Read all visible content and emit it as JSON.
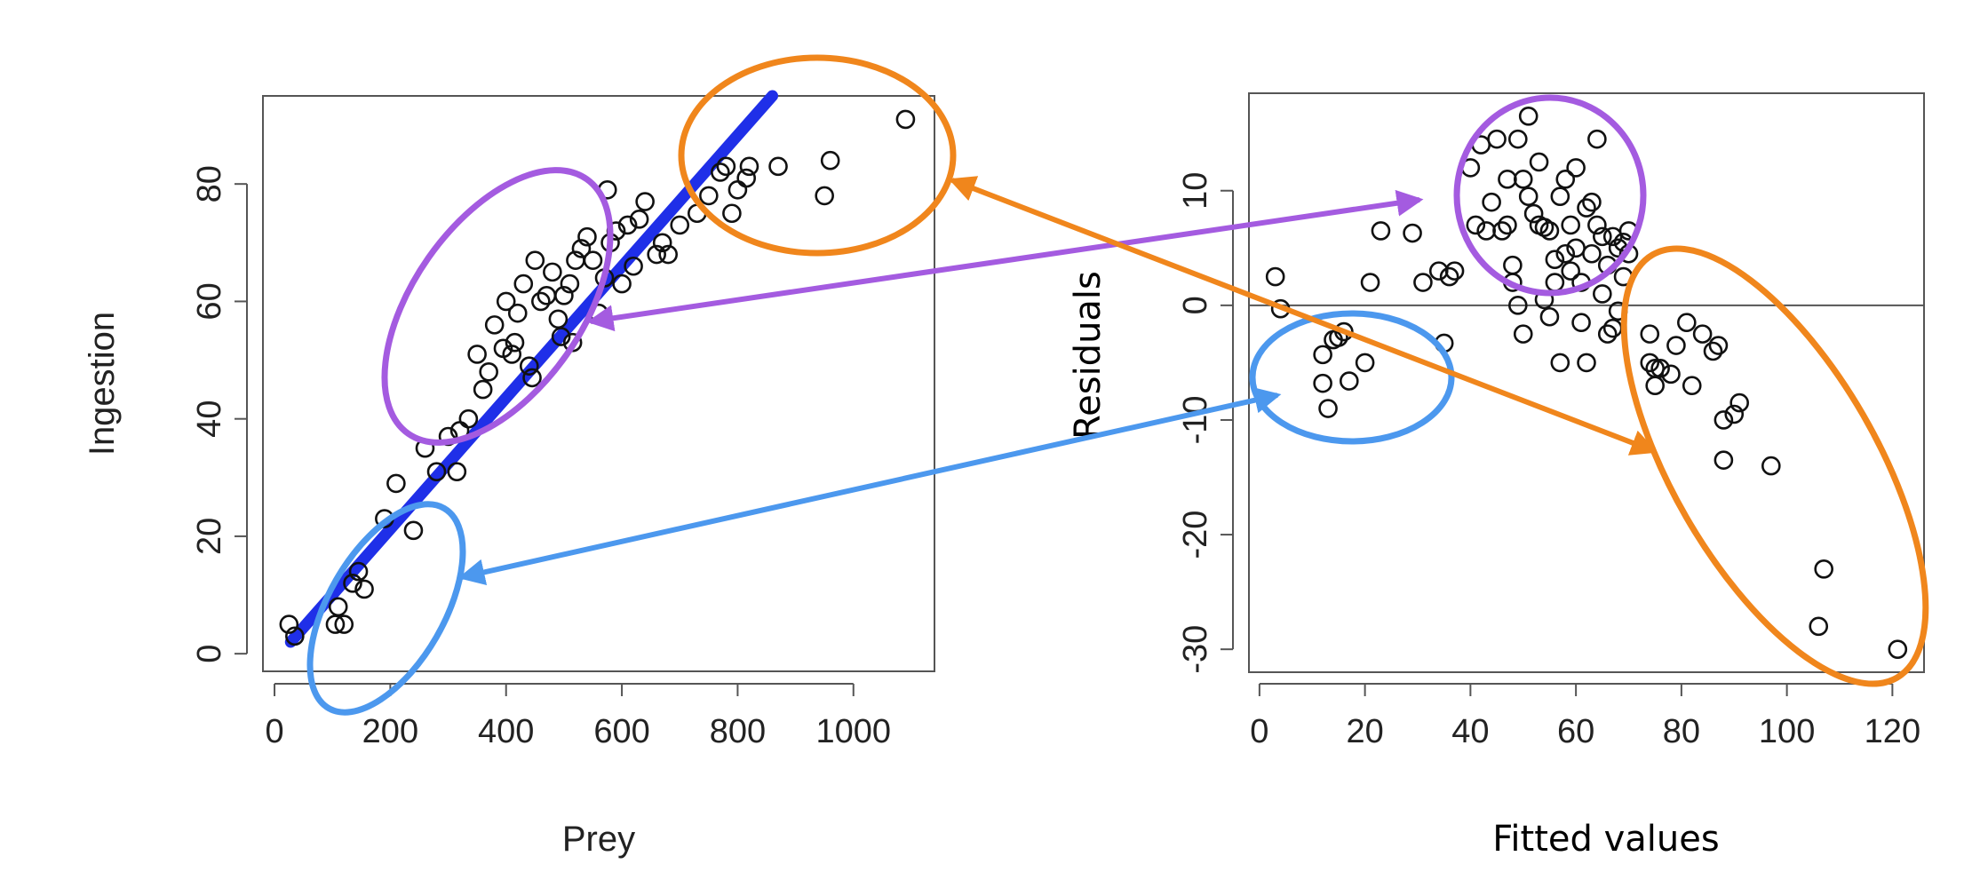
{
  "colors": {
    "regression_line": "#1f2fe8",
    "orange": "#f0861c",
    "purple": "#a45be0",
    "blue": "#4c98ee",
    "points": "#111111",
    "axes": "#555555"
  },
  "chart_data": [
    {
      "type": "scatter",
      "xlabel": "Prey",
      "ylabel": "Ingestion",
      "xlim": [
        -20,
        1140
      ],
      "ylim": [
        -3,
        95
      ],
      "x_ticks": [
        0,
        200,
        400,
        600,
        800,
        1000
      ],
      "x_tick_labels": [
        "0",
        "200",
        "400",
        "600",
        "800",
        "1000"
      ],
      "y_ticks": [
        0,
        20,
        40,
        60,
        80
      ],
      "y_tick_labels": [
        "0",
        "20",
        "40",
        "60",
        "80"
      ],
      "grid": false,
      "regression_line": {
        "x": [
          28,
          860
        ],
        "y": [
          2,
          95
        ],
        "color": "#1f2fe8"
      },
      "points": [
        [
          25,
          5
        ],
        [
          35,
          3
        ],
        [
          105,
          5
        ],
        [
          110,
          8
        ],
        [
          120,
          5
        ],
        [
          135,
          12
        ],
        [
          145,
          14
        ],
        [
          155,
          11
        ],
        [
          190,
          23
        ],
        [
          210,
          29
        ],
        [
          240,
          21
        ],
        [
          260,
          35
        ],
        [
          280,
          31
        ],
        [
          300,
          37
        ],
        [
          315,
          31
        ],
        [
          320,
          38
        ],
        [
          335,
          40
        ],
        [
          350,
          51
        ],
        [
          360,
          45
        ],
        [
          370,
          48
        ],
        [
          380,
          56
        ],
        [
          395,
          52
        ],
        [
          400,
          60
        ],
        [
          410,
          51
        ],
        [
          415,
          53
        ],
        [
          420,
          58
        ],
        [
          430,
          63
        ],
        [
          440,
          49
        ],
        [
          445,
          47
        ],
        [
          450,
          67
        ],
        [
          460,
          60
        ],
        [
          470,
          61
        ],
        [
          480,
          65
        ],
        [
          490,
          57
        ],
        [
          495,
          54
        ],
        [
          500,
          61
        ],
        [
          510,
          63
        ],
        [
          515,
          53
        ],
        [
          520,
          67
        ],
        [
          530,
          69
        ],
        [
          540,
          71
        ],
        [
          550,
          67
        ],
        [
          560,
          58
        ],
        [
          570,
          64
        ],
        [
          575,
          79
        ],
        [
          580,
          70
        ],
        [
          590,
          72
        ],
        [
          600,
          63
        ],
        [
          610,
          73
        ],
        [
          620,
          66
        ],
        [
          630,
          74
        ],
        [
          640,
          77
        ],
        [
          660,
          68
        ],
        [
          670,
          70
        ],
        [
          680,
          68
        ],
        [
          700,
          73
        ],
        [
          730,
          75
        ],
        [
          750,
          78
        ],
        [
          770,
          82
        ],
        [
          780,
          83
        ],
        [
          790,
          75
        ],
        [
          800,
          79
        ],
        [
          815,
          81
        ],
        [
          820,
          83
        ],
        [
          870,
          83
        ],
        [
          950,
          78
        ],
        [
          960,
          84
        ],
        [
          1090,
          91
        ]
      ]
    },
    {
      "type": "scatter",
      "xlabel": "Fitted values",
      "ylabel": "Residuals",
      "xlim": [
        -2,
        126
      ],
      "ylim": [
        -32,
        18.5
      ],
      "x_ticks": [
        0,
        20,
        40,
        60,
        80,
        100,
        120
      ],
      "x_tick_labels": [
        "0",
        "20",
        "40",
        "60",
        "80",
        "100",
        "120"
      ],
      "y_ticks": [
        -30,
        -20,
        -10,
        0,
        10
      ],
      "y_tick_labels": [
        "-30",
        "-20",
        "-10",
        "0",
        "10"
      ],
      "grid": false,
      "reference_line_y": 0,
      "points": [
        [
          3,
          2.5
        ],
        [
          4,
          -0.3
        ],
        [
          12,
          -4.3
        ],
        [
          12,
          -6.8
        ],
        [
          13,
          -9
        ],
        [
          14,
          -3
        ],
        [
          15,
          -2.8
        ],
        [
          16,
          -2.3
        ],
        [
          17,
          -6.6
        ],
        [
          20,
          -5
        ],
        [
          21,
          2
        ],
        [
          23,
          6.5
        ],
        [
          29,
          6.3
        ],
        [
          31,
          2
        ],
        [
          34,
          3
        ],
        [
          35,
          -3.3
        ],
        [
          36,
          2.5
        ],
        [
          37,
          3
        ],
        [
          40,
          12
        ],
        [
          41,
          7
        ],
        [
          42,
          14
        ],
        [
          43,
          6.5
        ],
        [
          44,
          9
        ],
        [
          45,
          14.5
        ],
        [
          46,
          6.5
        ],
        [
          47,
          7
        ],
        [
          47,
          11
        ],
        [
          48,
          3.5
        ],
        [
          48,
          2
        ],
        [
          49,
          14.5
        ],
        [
          49,
          0
        ],
        [
          50,
          11
        ],
        [
          50,
          -2.5
        ],
        [
          51,
          16.5
        ],
        [
          51,
          9.5
        ],
        [
          52,
          8
        ],
        [
          53,
          12.5
        ],
        [
          53,
          7
        ],
        [
          54,
          6.8
        ],
        [
          54,
          0.5
        ],
        [
          55,
          6.5
        ],
        [
          55,
          -1
        ],
        [
          56,
          4
        ],
        [
          56,
          2
        ],
        [
          57,
          9.5
        ],
        [
          57,
          -5
        ],
        [
          58,
          11
        ],
        [
          58,
          4.5
        ],
        [
          59,
          7
        ],
        [
          59,
          3
        ],
        [
          60,
          12
        ],
        [
          60,
          5
        ],
        [
          61,
          -1.5
        ],
        [
          61,
          2
        ],
        [
          62,
          8.5
        ],
        [
          62,
          -5
        ],
        [
          63,
          9
        ],
        [
          63,
          4.5
        ],
        [
          64,
          14.5
        ],
        [
          64,
          7
        ],
        [
          65,
          6
        ],
        [
          65,
          1
        ],
        [
          66,
          3.5
        ],
        [
          66,
          -2.5
        ],
        [
          67,
          6
        ],
        [
          67,
          -2
        ],
        [
          68,
          5
        ],
        [
          68,
          -0.5
        ],
        [
          69,
          5.5
        ],
        [
          69,
          2.5
        ],
        [
          70,
          6.5
        ],
        [
          70,
          4.5
        ],
        [
          74,
          -2.5
        ],
        [
          74,
          -5
        ],
        [
          75,
          -5.5
        ],
        [
          75,
          -7
        ],
        [
          76,
          -5.5
        ],
        [
          78,
          -6
        ],
        [
          79,
          -3.5
        ],
        [
          81,
          -1.5
        ],
        [
          82,
          -7
        ],
        [
          84,
          -2.5
        ],
        [
          86,
          -4
        ],
        [
          87,
          -3.5
        ],
        [
          88,
          -13.5
        ],
        [
          88,
          -10
        ],
        [
          90,
          -9.5
        ],
        [
          91,
          -8.5
        ],
        [
          97,
          -14
        ],
        [
          106,
          -28
        ],
        [
          107,
          -23
        ],
        [
          121,
          -30
        ]
      ]
    }
  ]
}
